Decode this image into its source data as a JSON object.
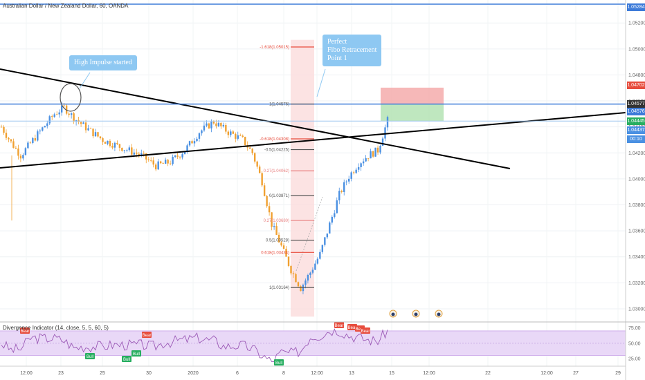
{
  "title": "Australian Dollar / New Zealand Dollar, 60, OANDA",
  "indicator_title": "Divergence Indicator (14, close, 5, 5, 60, 5)",
  "notes": {
    "impulse": "High Impulse started",
    "fibo": "Perfect\nFibo Retracement\nPoint 1"
  },
  "colors": {
    "up": "#4a90e2",
    "down": "#f0a030",
    "trendline": "#000000",
    "hline": "#3d7bd9",
    "stop_zone": "#f4a6a6",
    "target_zone": "#b8e4b8",
    "fib_zone": "#fbdcdc",
    "rsi_band": "#e9d8f7",
    "rsi_line": "#9b59b6",
    "bear": "#e74c3c",
    "bull": "#27ae60"
  },
  "price_tags": [
    {
      "value": "1.05284",
      "color": "#3d7bd9"
    },
    {
      "value": "1.04702",
      "color": "#e74c3c"
    },
    {
      "value": "1.04577",
      "color": "#333333"
    },
    {
      "value": "1.04576",
      "color": "#3d7bd9"
    },
    {
      "value": "1.04445",
      "color": "#27ae60"
    },
    {
      "value": "1.04437",
      "color": "#4a90e2"
    },
    {
      "value": "00:10",
      "color": "#4a90e2"
    }
  ],
  "fib_levels": [
    {
      "label": "-1.618(1.05015)",
      "value": 1.05015,
      "color": "#e74c3c"
    },
    {
      "label": "1(1.04576)",
      "value": 1.04576,
      "color": "#555555"
    },
    {
      "label": "-0.618(1.04308)",
      "value": 1.04308,
      "color": "#e74c3c"
    },
    {
      "label": "-0.5(1.04225)",
      "value": 1.04225,
      "color": "#555555"
    },
    {
      "label": "0.27(1.04062)",
      "value": 1.04062,
      "color": "#e88080"
    },
    {
      "label": "0(1.03871)",
      "value": 1.03871,
      "color": "#555555"
    },
    {
      "label": "0.27(1.03680)",
      "value": 1.0368,
      "color": "#e88080"
    },
    {
      "label": "0.5(1.03528)",
      "value": 1.03528,
      "color": "#555555"
    },
    {
      "label": "0.618(1.03434)",
      "value": 1.03434,
      "color": "#e74c3c"
    },
    {
      "label": "1(1.03164)",
      "value": 1.03164,
      "color": "#555555"
    }
  ],
  "chart_data": {
    "type": "candlestick",
    "symbol": "AUD/NZD",
    "timeframe": "60",
    "ylim": [
      1.0292,
      1.0535
    ],
    "y_ticks": [
      "1.05200",
      "1.05000",
      "1.04800",
      "1.04600",
      "1.04400",
      "1.04200",
      "1.04000",
      "1.03800",
      "1.03600",
      "1.03400",
      "1.03200",
      "1.03000"
    ],
    "x_ticks": [
      "12:00",
      "23",
      "25",
      "30",
      "2020",
      "6",
      "8",
      "12:00",
      "13",
      "15",
      "12:00",
      "22",
      "12:00",
      "27",
      "29"
    ],
    "price_path": [
      [
        0,
        1.044
      ],
      [
        4,
        1.0428
      ],
      [
        8,
        1.0418
      ],
      [
        14,
        1.0432
      ],
      [
        22,
        1.045
      ],
      [
        26,
        1.0455
      ],
      [
        30,
        1.0447
      ],
      [
        36,
        1.0438
      ],
      [
        42,
        1.043
      ],
      [
        50,
        1.0424
      ],
      [
        58,
        1.0418
      ],
      [
        64,
        1.041
      ],
      [
        70,
        1.0413
      ],
      [
        76,
        1.0422
      ],
      [
        82,
        1.0436
      ],
      [
        88,
        1.0444
      ],
      [
        94,
        1.0436
      ],
      [
        100,
        1.043
      ],
      [
        104,
        1.042
      ],
      [
        108,
        1.0398
      ],
      [
        112,
        1.0365
      ],
      [
        116,
        1.0348
      ],
      [
        120,
        1.033
      ],
      [
        124,
        1.0316
      ],
      [
        128,
        1.0328
      ],
      [
        132,
        1.0342
      ],
      [
        136,
        1.0365
      ],
      [
        140,
        1.0388
      ],
      [
        144,
        1.0402
      ],
      [
        148,
        1.0412
      ],
      [
        152,
        1.0418
      ],
      [
        156,
        1.0422
      ],
      [
        160,
        1.0445
      ]
    ],
    "rsi": {
      "ylim": [
        15,
        80
      ],
      "ticks": [
        "75.00",
        "50.00",
        "25.00"
      ],
      "bands": [
        30,
        70
      ]
    },
    "signals": [
      {
        "label": "Bear",
        "kind": "bear"
      },
      {
        "label": "Bull",
        "kind": "bull"
      },
      {
        "label": "Bull",
        "kind": "bull"
      },
      {
        "label": "Bull",
        "kind": "bull"
      },
      {
        "label": "Bear",
        "kind": "bear"
      },
      {
        "label": "Bull",
        "kind": "bull"
      },
      {
        "label": "Bear",
        "kind": "bear"
      },
      {
        "label": "Bear",
        "kind": "bear"
      },
      {
        "label": "Bear",
        "kind": "bear"
      },
      {
        "label": "Bear",
        "kind": "bear"
      }
    ]
  }
}
